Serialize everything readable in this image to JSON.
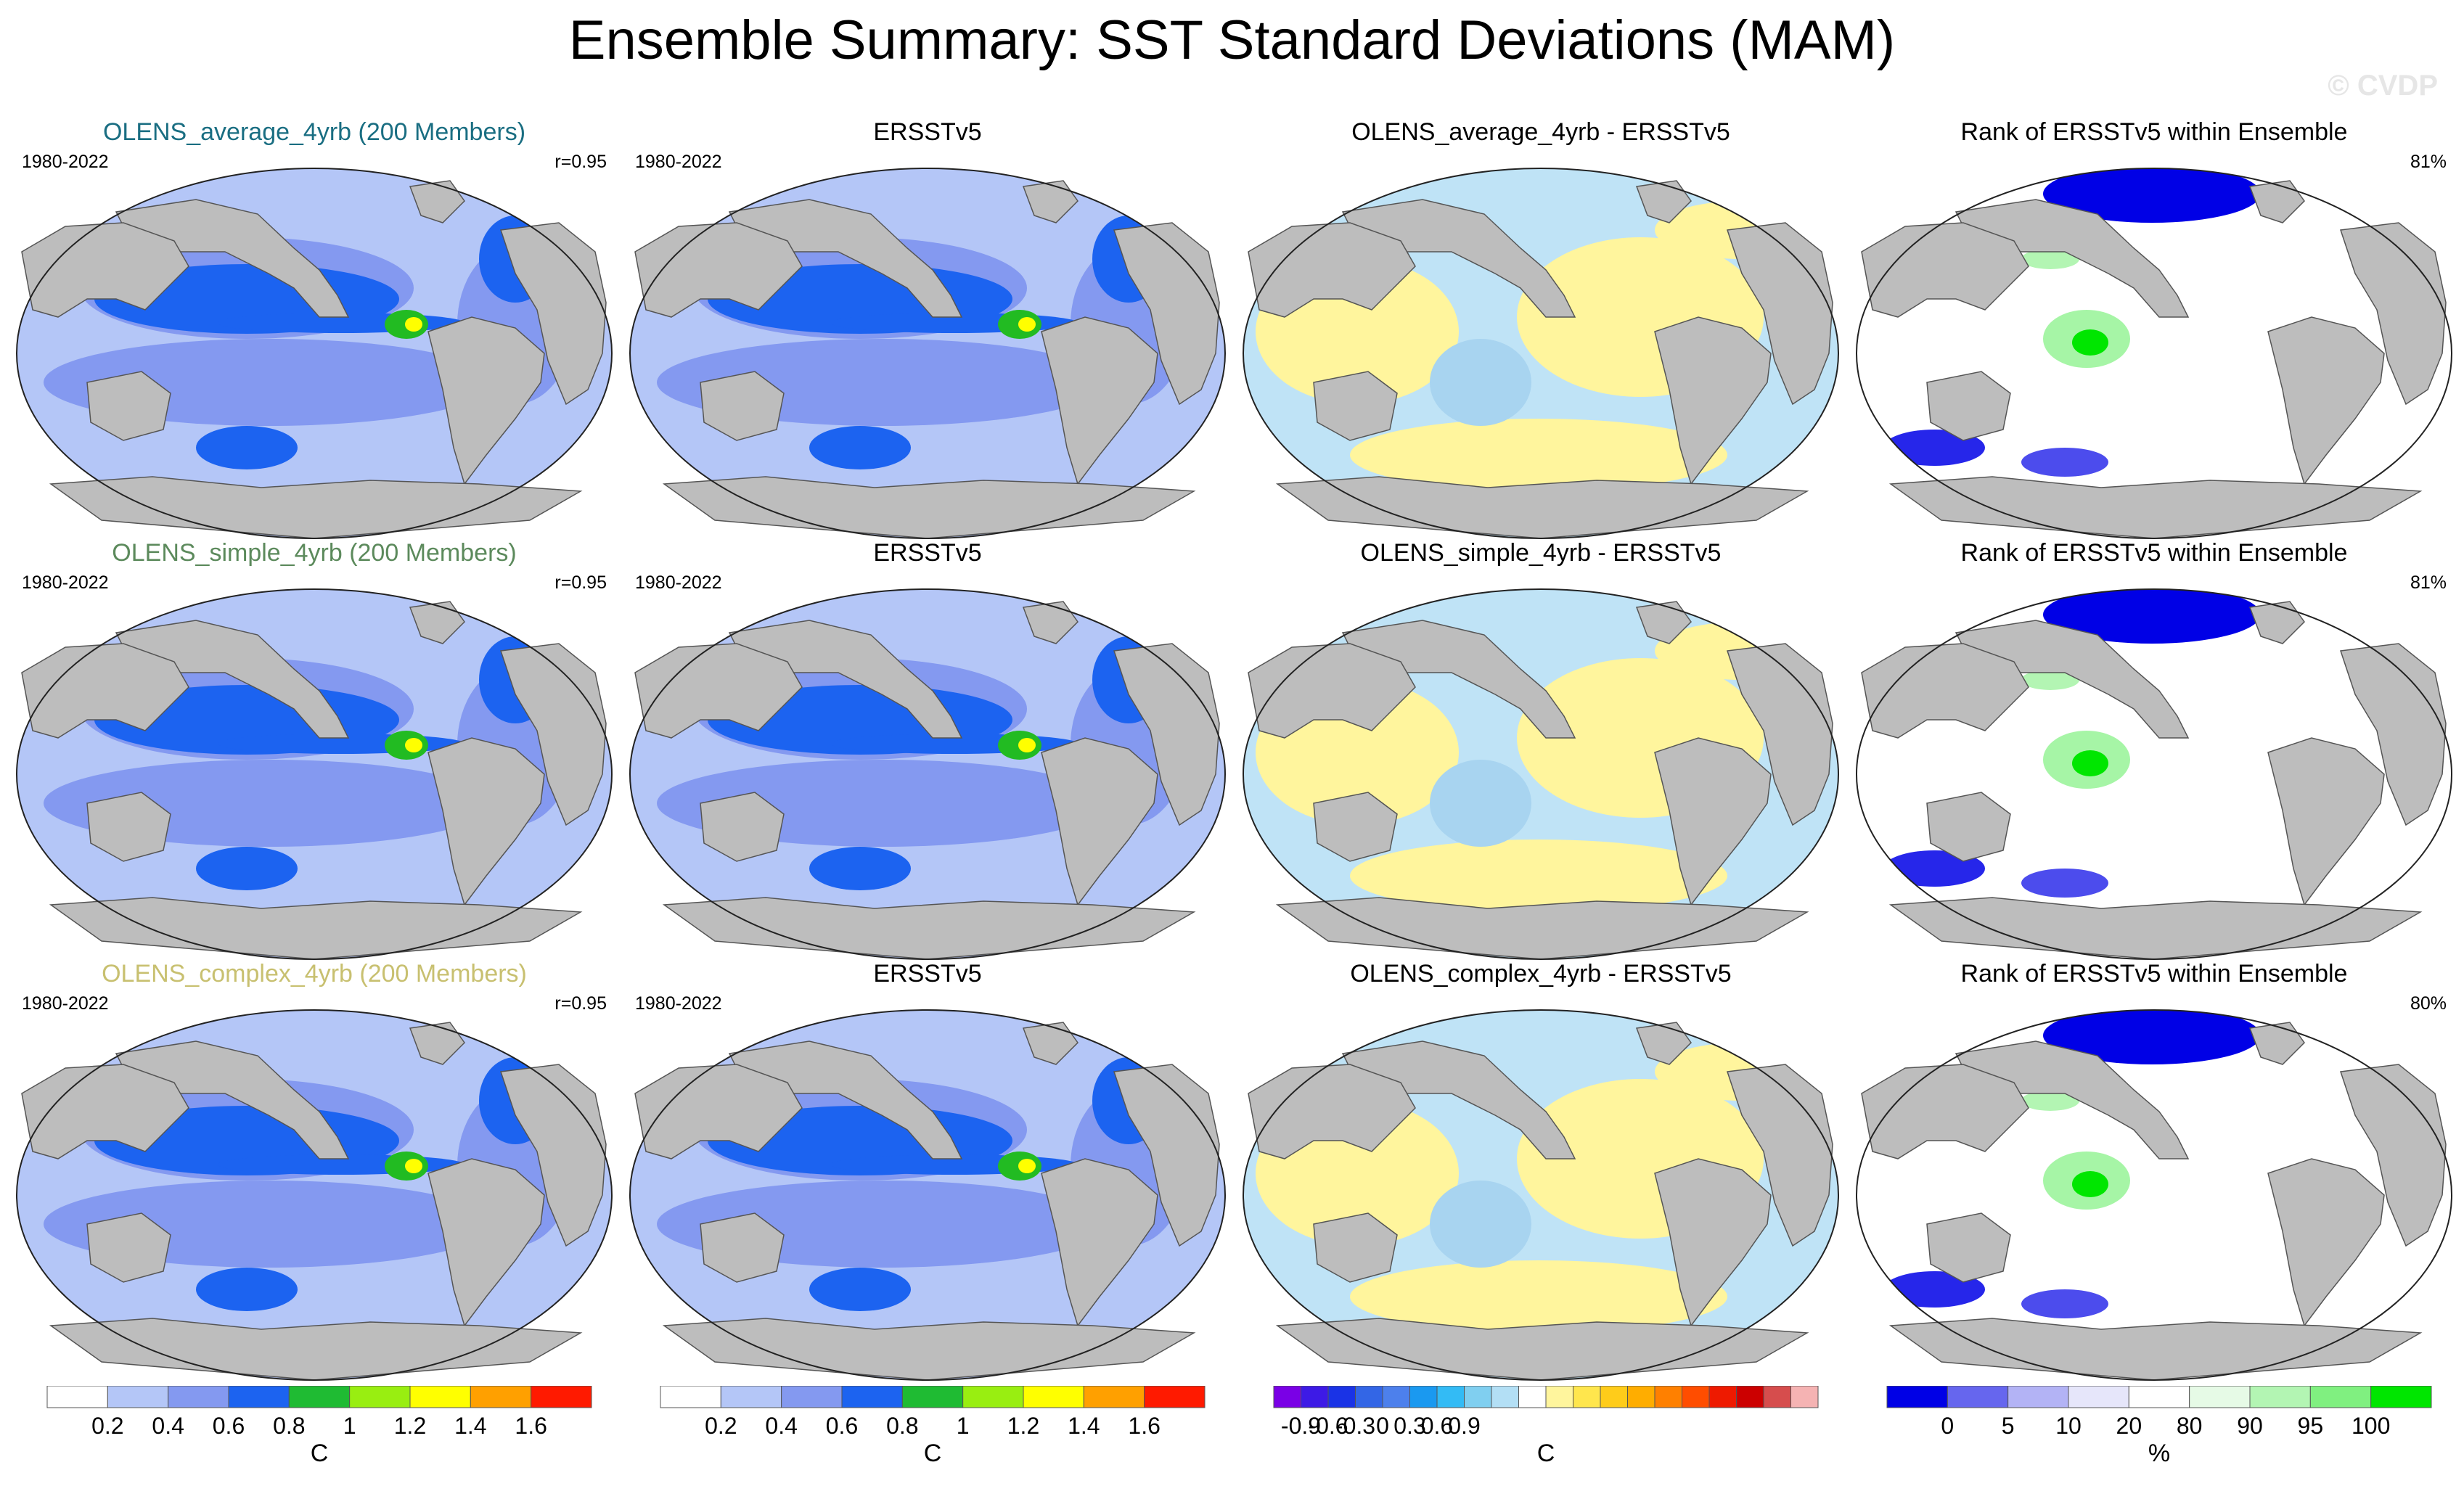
{
  "header": {
    "title": "Ensemble Summary: SST Standard Deviations (MAM)",
    "watermark": "© CVDP"
  },
  "colors": {
    "ocean_weak": "#b4c6f7",
    "ocean_mid": "#8499f0",
    "ocean_strong": "#1c63f0",
    "green": "#22bb22",
    "land": "#bdbdbd",
    "anom_pos": "#fff59d",
    "anom_neg": "#bfe3f6",
    "rank_low": "#0000e6",
    "rank_high": "#00e600"
  },
  "rows": [
    {
      "model_title": "OLENS_average_4yrb (200 Members)",
      "model_color": "#1a6e82",
      "period": "1980-2022",
      "correlation": "r=0.95",
      "obs_title": "ERSSTv5",
      "obs_period": "1980-2022",
      "diff_title": "OLENS_average_4yrb - ERSSTv5",
      "rank_title": "Rank of ERSSTv5 within Ensemble",
      "rank_pct": "81%"
    },
    {
      "model_title": "OLENS_simple_4yrb (200 Members)",
      "model_color": "#5c8a5c",
      "period": "1980-2022",
      "correlation": "r=0.95",
      "obs_title": "ERSSTv5",
      "obs_period": "1980-2022",
      "diff_title": "OLENS_simple_4yrb - ERSSTv5",
      "rank_title": "Rank of ERSSTv5 within Ensemble",
      "rank_pct": "81%"
    },
    {
      "model_title": "OLENS_complex_4yrb (200 Members)",
      "model_color": "#c8c070",
      "period": "1980-2022",
      "correlation": "r=0.95",
      "obs_title": "ERSSTv5",
      "obs_period": "1980-2022",
      "diff_title": "OLENS_complex_4yrb - ERSSTv5",
      "rank_title": "Rank of ERSSTv5 within Ensemble",
      "rank_pct": "80%"
    }
  ],
  "colorbars": {
    "std": {
      "unit": "C",
      "colors": [
        "#ffffff",
        "#b4c6f7",
        "#8499f0",
        "#1c63f0",
        "#1fbb33",
        "#99ee11",
        "#ffff00",
        "#ffa000",
        "#ff1a00"
      ],
      "labels": [
        "0.2",
        "0.4",
        "0.6",
        "0.8",
        "1",
        "1.2",
        "1.4",
        "1.6"
      ]
    },
    "diff": {
      "unit": "C",
      "colors": [
        "#7a00e6",
        "#3d1ae6",
        "#1a33e6",
        "#3366e6",
        "#4d80ec",
        "#1a99f0",
        "#33bbf5",
        "#80cff0",
        "#b3dff5",
        "#ffffff",
        "#fff59d",
        "#ffe64d",
        "#ffcc1a",
        "#ffad00",
        "#ff8000",
        "#ff4d00",
        "#ee1a00",
        "#cc0000",
        "#d64d4d",
        "#f5b3b3"
      ],
      "labels": [
        "-0.9",
        "-0.6",
        "-0.3",
        "0",
        "0.3",
        "0.6",
        "0.9"
      ]
    },
    "rank": {
      "unit": "%",
      "colors": [
        "#0000e6",
        "#6666ee",
        "#b3b3f5",
        "#e6e6fa",
        "#ffffff",
        "#e6fae6",
        "#b3f5b3",
        "#80f080",
        "#00e600"
      ],
      "labels": [
        "0",
        "5",
        "10",
        "20",
        "80",
        "90",
        "95",
        "100"
      ]
    }
  }
}
